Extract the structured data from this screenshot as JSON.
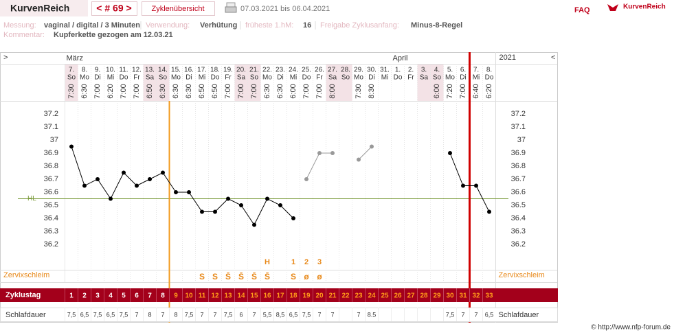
{
  "header": {
    "title": "KurvenReich",
    "cycle_nav": "< # 69 >",
    "overview": "Zyklenübersicht",
    "date_range": "07.03.2021 bis 06.04.2021",
    "faq": "FAQ",
    "logo": "KurvenReich"
  },
  "info": {
    "measurement_label": "Messung:",
    "measurement": "vaginal / digital / 3 Minuten",
    "usage_label": "Verwendung:",
    "usage": "Verhütung",
    "earliest_label": "früheste 1.hM:",
    "earliest": 16,
    "release_label": "Freigabe Zyklusanfang:",
    "release": "Minus-8-Regel",
    "comment_label": "Kommentar:",
    "comment": "Kupferkette gezogen am 12.03.21"
  },
  "chart_data": {
    "type": "line",
    "nav_left": ">",
    "nav_right": "<",
    "year": "2021",
    "month_labels": [
      "März",
      null,
      null,
      null,
      null,
      null,
      null,
      null,
      null,
      null,
      null,
      null,
      null,
      null,
      null,
      null,
      null,
      null,
      null,
      null,
      null,
      null,
      null,
      null,
      null,
      "April",
      null,
      null,
      null,
      null,
      null,
      null,
      null
    ],
    "categories": [
      "7.",
      "8.",
      "9.",
      "10.",
      "11.",
      "12.",
      "13.",
      "14.",
      "15.",
      "16.",
      "17.",
      "18.",
      "19.",
      "20.",
      "21.",
      "22.",
      "23.",
      "24.",
      "25.",
      "26.",
      "27.",
      "28.",
      "29.",
      "30.",
      "31.",
      "1.",
      "2.",
      "3.",
      "4.",
      "5.",
      "6.",
      "7.",
      "8."
    ],
    "weekdays": [
      "So",
      "Mo",
      "Di",
      "Mi",
      "Do",
      "Fr",
      "Sa",
      "So",
      "Mo",
      "Di",
      "Mi",
      "Do",
      "Fr",
      "Sa",
      "So",
      "Mo",
      "Di",
      "Mi",
      "Do",
      "Fr",
      "Sa",
      "So",
      "Mo",
      "Di",
      "Mi",
      "Do",
      "Fr",
      "Sa",
      "So",
      "Mo",
      "Di",
      "Mi",
      "Do"
    ],
    "times": [
      "7:30",
      "6:30",
      "7:00",
      "6:20",
      "7:00",
      "7:00",
      "6:50",
      "6:30",
      "6:30",
      "6:30",
      "6:50",
      "6:50",
      "7:00",
      "7:00",
      "7:00",
      "6:30",
      "6:30",
      "6:00",
      "7:00",
      "7:00",
      "8:00",
      null,
      "7:30",
      "8:30",
      null,
      null,
      null,
      null,
      "6:00",
      "7:20",
      "7:00",
      "6:40",
      "6:20"
    ],
    "ylim": [
      36.0,
      37.3
    ],
    "yticks": [
      36.2,
      36.3,
      36.4,
      36.5,
      36.6,
      36.7,
      36.8,
      36.9,
      37,
      37.1,
      37.2
    ],
    "hl": 36.55,
    "hl_label": "HL",
    "hl_color": "#7a9a3a",
    "series": [
      {
        "color": "#000000",
        "values": [
          36.95,
          36.65,
          36.7,
          36.55,
          36.75,
          36.65,
          36.7,
          36.75,
          36.6,
          36.6,
          36.45,
          36.45,
          36.55,
          36.5,
          36.35,
          36.55,
          36.5,
          36.4,
          null,
          null,
          null,
          null,
          null,
          null,
          null,
          null,
          null,
          null,
          null,
          36.9,
          36.65,
          36.65,
          36.45
        ]
      },
      {
        "color": "#999999",
        "values": [
          null,
          null,
          null,
          null,
          null,
          null,
          null,
          null,
          null,
          null,
          null,
          null,
          null,
          null,
          null,
          null,
          null,
          null,
          36.7,
          36.9,
          36.9,
          null,
          36.85,
          36.95,
          null,
          null,
          null,
          null,
          null,
          null,
          null,
          null,
          null
        ]
      }
    ],
    "cervix_label": "Zervixschleim",
    "peak_marks": [
      null,
      null,
      null,
      null,
      null,
      null,
      null,
      null,
      null,
      null,
      null,
      null,
      null,
      null,
      null,
      "H",
      null,
      "1",
      "2",
      "3",
      null,
      null,
      null,
      null,
      null,
      null,
      null,
      null,
      null,
      null,
      null,
      null,
      null
    ],
    "cervix": [
      null,
      null,
      null,
      null,
      null,
      null,
      null,
      null,
      null,
      null,
      "S",
      "S",
      "S̄",
      "S̄",
      "S̄",
      "S̄",
      null,
      "S",
      "ø",
      "ø",
      null,
      null,
      null,
      null,
      null,
      null,
      null,
      null,
      null,
      null,
      null,
      null,
      null
    ],
    "cycle_label": "Zyklustag",
    "cycle_days": [
      1,
      2,
      3,
      4,
      5,
      6,
      7,
      8,
      9,
      10,
      11,
      12,
      13,
      14,
      15,
      16,
      17,
      18,
      19,
      20,
      21,
      22,
      23,
      24,
      25,
      26,
      27,
      28,
      29,
      30,
      31,
      32,
      33
    ],
    "sleep_label": "Schlafdauer",
    "sleep": [
      "7,5",
      "6,5",
      "7,5",
      "6,5",
      "7,5",
      "7",
      "8",
      "7",
      "8",
      "7,5",
      "7",
      "7",
      "7,5",
      "6",
      "7",
      "5,5",
      "8,5",
      "6,5",
      "7,5",
      "7",
      "7",
      null,
      "7",
      "8.5",
      null,
      null,
      null,
      null,
      null,
      "7,5",
      "7",
      "7",
      "6,5"
    ]
  },
  "footer": "© http://www.nfp-forum.de"
}
